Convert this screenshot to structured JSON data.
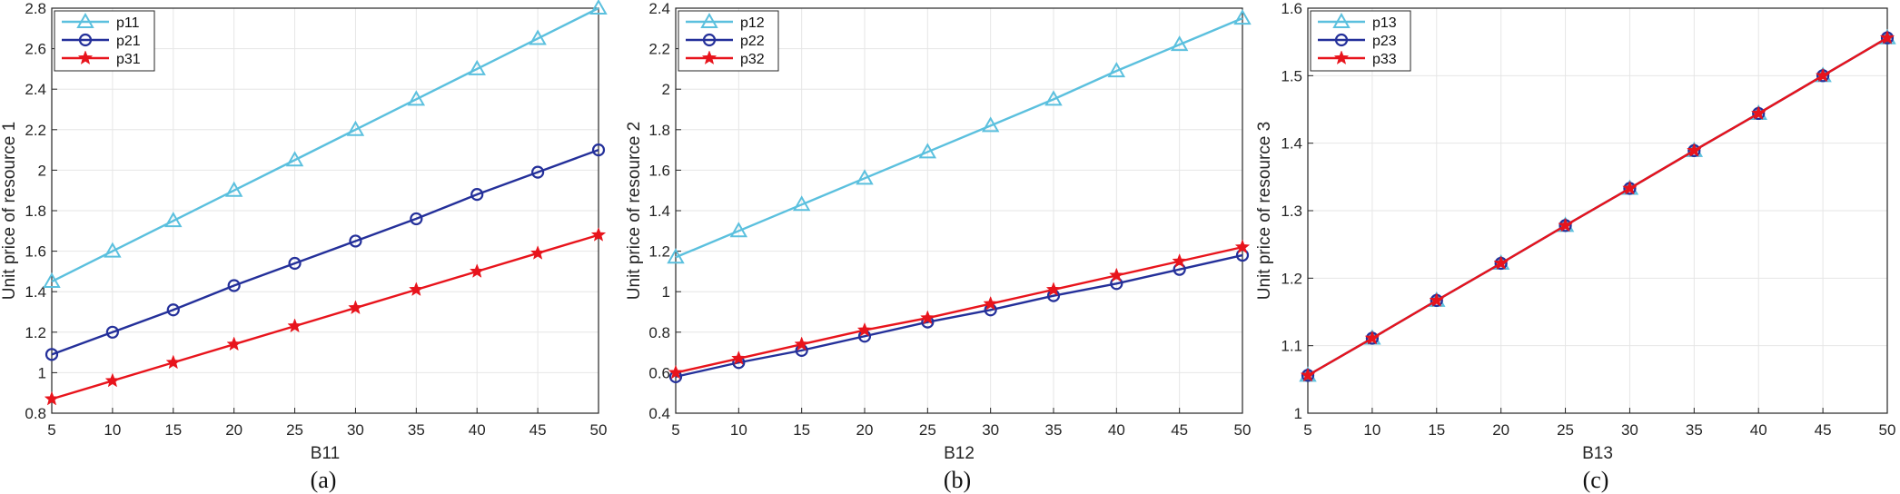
{
  "chart_data": [
    {
      "type": "line",
      "caption": "(a)",
      "xlabel": "B11",
      "ylabel": "Unit  price of resource 1",
      "x": [
        5,
        10,
        15,
        20,
        25,
        30,
        35,
        40,
        45,
        50
      ],
      "xlim": [
        5,
        50
      ],
      "ylim": [
        0.8,
        2.8
      ],
      "xticks": [
        "5",
        "10",
        "15",
        "20",
        "25",
        "30",
        "35",
        "40",
        "45",
        "50"
      ],
      "yticks": [
        "0.8",
        "1",
        "1.2",
        "1.4",
        "1.6",
        "1.8",
        "2",
        "2.2",
        "2.4",
        "2.6",
        "2.8"
      ],
      "grid": true,
      "legend_position": "top-left",
      "series": [
        {
          "name": "p11",
          "color": "#5bc0de",
          "marker": "triangle",
          "values": [
            1.45,
            1.6,
            1.75,
            1.9,
            2.05,
            2.2,
            2.35,
            2.5,
            2.65,
            2.8
          ]
        },
        {
          "name": "p21",
          "color": "#24309a",
          "marker": "circle",
          "values": [
            1.09,
            1.2,
            1.31,
            1.43,
            1.54,
            1.65,
            1.76,
            1.88,
            1.99,
            2.1
          ]
        },
        {
          "name": "p31",
          "color": "#e8141c",
          "marker": "star",
          "values": [
            0.87,
            0.96,
            1.05,
            1.14,
            1.23,
            1.32,
            1.41,
            1.5,
            1.59,
            1.68
          ]
        }
      ]
    },
    {
      "type": "line",
      "caption": "(b)",
      "xlabel": "B12",
      "ylabel": "Unit  price of resource 2",
      "x": [
        5,
        10,
        15,
        20,
        25,
        30,
        35,
        40,
        45,
        50
      ],
      "xlim": [
        5,
        50
      ],
      "ylim": [
        0.4,
        2.4
      ],
      "xticks": [
        "5",
        "10",
        "15",
        "20",
        "25",
        "30",
        "35",
        "40",
        "45",
        "50"
      ],
      "yticks": [
        "0.4",
        "0.6",
        "0.8",
        "1",
        "1.2",
        "1.4",
        "1.6",
        "1.8",
        "2",
        "2.2",
        "2.4"
      ],
      "grid": true,
      "legend_position": "top-left",
      "series": [
        {
          "name": "p12",
          "color": "#5bc0de",
          "marker": "triangle",
          "values": [
            1.17,
            1.3,
            1.43,
            1.56,
            1.69,
            1.82,
            1.95,
            2.09,
            2.22,
            2.35
          ]
        },
        {
          "name": "p22",
          "color": "#24309a",
          "marker": "circle",
          "values": [
            0.58,
            0.65,
            0.71,
            0.78,
            0.85,
            0.91,
            0.98,
            1.04,
            1.11,
            1.18
          ]
        },
        {
          "name": "p32",
          "color": "#e8141c",
          "marker": "star",
          "values": [
            0.6,
            0.67,
            0.74,
            0.81,
            0.87,
            0.94,
            1.01,
            1.08,
            1.15,
            1.22
          ]
        }
      ]
    },
    {
      "type": "line",
      "caption": "(c)",
      "xlabel": "B13",
      "ylabel": "Unit price of resource 3",
      "x": [
        5,
        10,
        15,
        20,
        25,
        30,
        35,
        40,
        45,
        50
      ],
      "xlim": [
        5,
        50
      ],
      "ylim": [
        1.0,
        1.6
      ],
      "xticks": [
        "5",
        "10",
        "15",
        "20",
        "25",
        "30",
        "35",
        "40",
        "45",
        "50"
      ],
      "yticks": [
        "1",
        "1.1",
        "1.2",
        "1.3",
        "1.4",
        "1.5",
        "1.6"
      ],
      "grid": true,
      "legend_position": "top-left",
      "series": [
        {
          "name": "p13",
          "color": "#5bc0de",
          "marker": "triangle",
          "values": [
            1.056,
            1.111,
            1.167,
            1.222,
            1.278,
            1.333,
            1.389,
            1.444,
            1.5,
            1.556
          ]
        },
        {
          "name": "p23",
          "color": "#24309a",
          "marker": "circle",
          "values": [
            1.056,
            1.111,
            1.167,
            1.222,
            1.278,
            1.333,
            1.389,
            1.444,
            1.5,
            1.556
          ]
        },
        {
          "name": "p33",
          "color": "#e8141c",
          "marker": "star",
          "values": [
            1.056,
            1.111,
            1.167,
            1.222,
            1.278,
            1.333,
            1.389,
            1.444,
            1.5,
            1.556
          ]
        }
      ]
    }
  ]
}
